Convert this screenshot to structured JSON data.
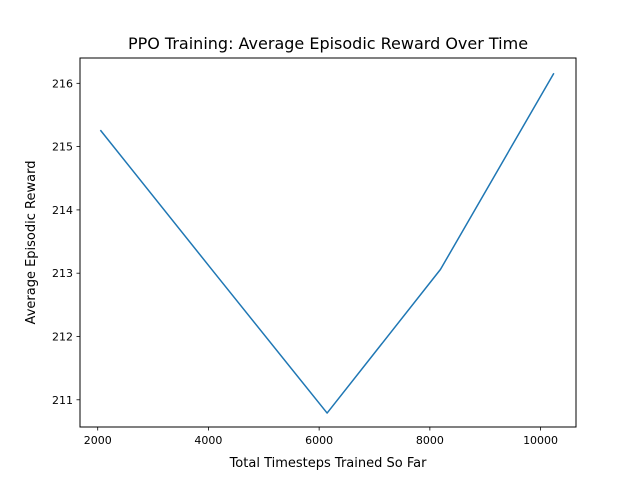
{
  "chart_data": {
    "type": "line",
    "title": "PPO Training: Average Episodic Reward Over Time",
    "xlabel": "Total Timesteps Trained So Far",
    "ylabel": "Average Episodic Reward",
    "xlim": [
      1680,
      10640
    ],
    "ylim": [
      210.57,
      216.4
    ],
    "xticks": [
      2000,
      4000,
      6000,
      8000,
      10000
    ],
    "yticks": [
      211,
      212,
      213,
      214,
      215,
      216
    ],
    "grid": false,
    "legend": "none",
    "series": [
      {
        "color": "#1f77b4",
        "x": [
          2048,
          4096,
          6144,
          8192,
          10240
        ],
        "y": [
          215.26,
          213.02,
          210.79,
          213.06,
          216.16
        ]
      }
    ]
  }
}
